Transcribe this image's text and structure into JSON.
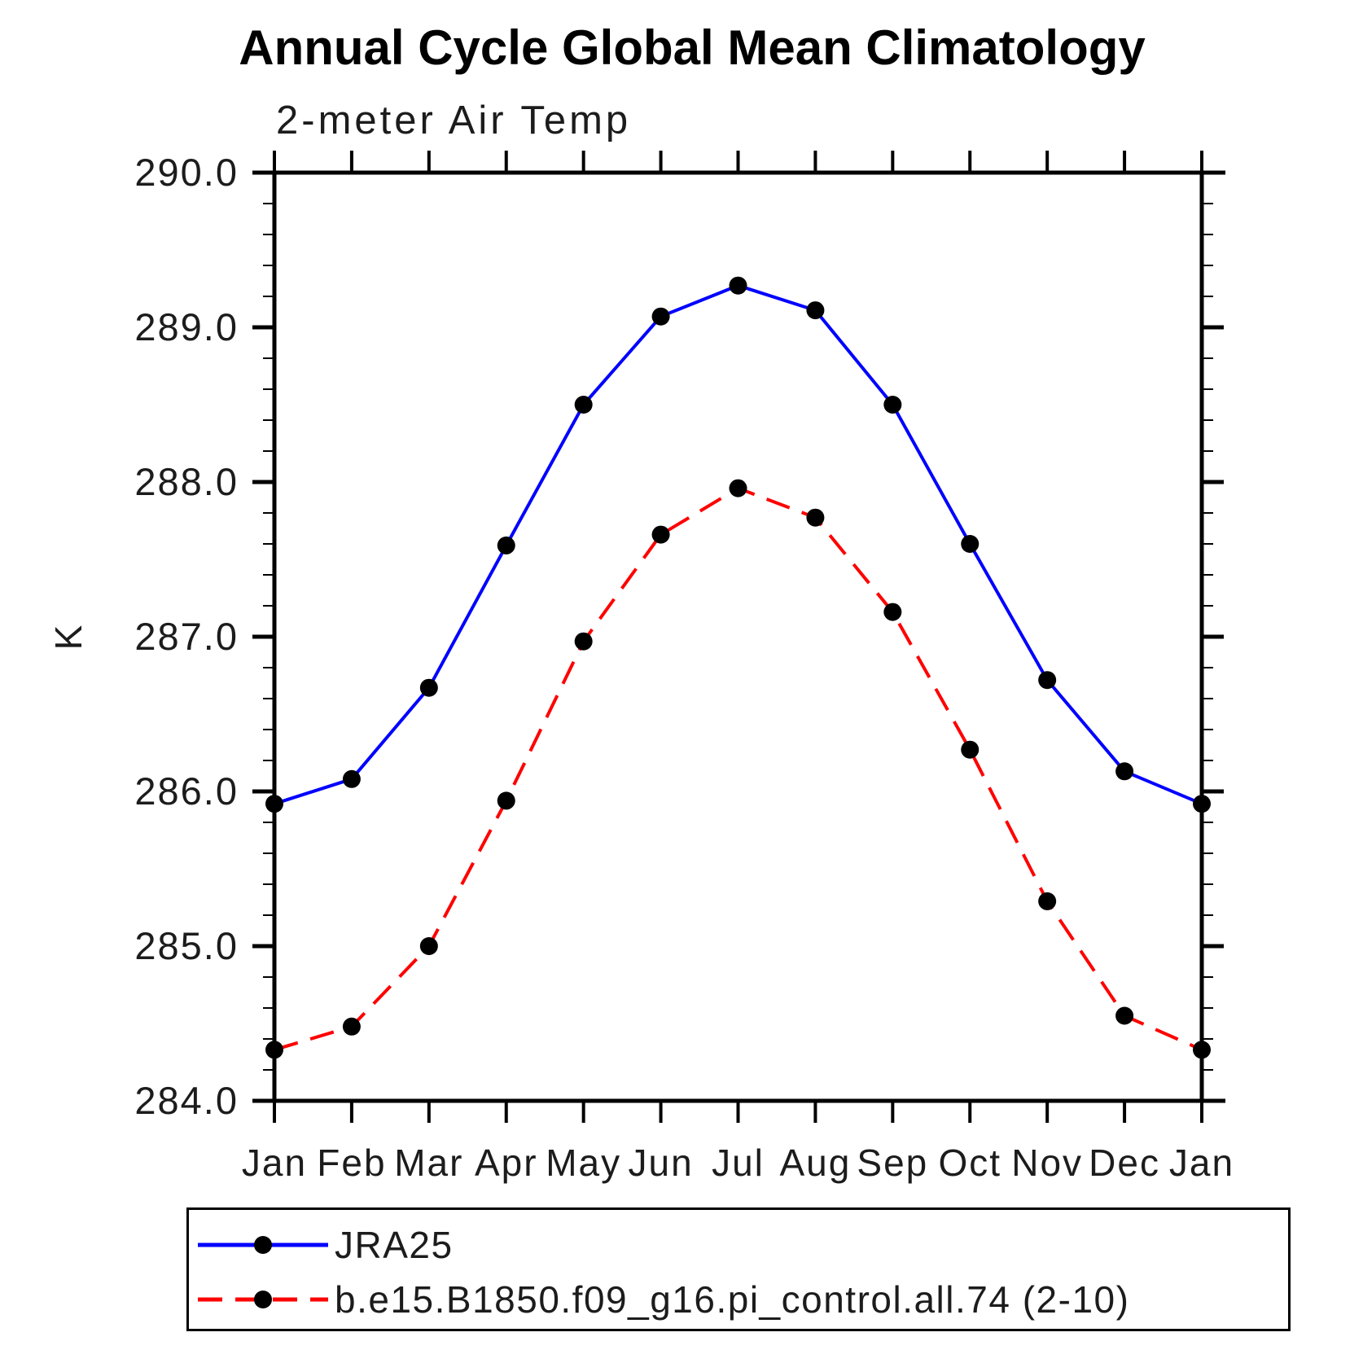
{
  "header": {
    "title": "Annual Cycle Global Mean Climatology",
    "subtitle": "2-meter Air Temp"
  },
  "chart_data": {
    "type": "line",
    "title": "Annual Cycle Global Mean Climatology",
    "subtitle": "2-meter Air Temp",
    "xlabel": "",
    "ylabel": "K",
    "categories": [
      "Jan",
      "Feb",
      "Mar",
      "Apr",
      "May",
      "Jun",
      "Jul",
      "Aug",
      "Sep",
      "Oct",
      "Nov",
      "Dec",
      "Jan"
    ],
    "series": [
      {
        "name": "JRA25",
        "color": "#0000ff",
        "line_style": "solid",
        "marker": "filled-circle",
        "marker_color": "#000000",
        "values": [
          285.92,
          286.08,
          286.67,
          287.59,
          288.5,
          289.07,
          289.27,
          289.11,
          288.5,
          287.6,
          286.72,
          286.13,
          285.92
        ]
      },
      {
        "name": "b.e15.B1850.f09_g16.pi_control.all.74 (2-10)",
        "color": "#ff0000",
        "line_style": "dashed",
        "marker": "filled-circle",
        "marker_color": "#000000",
        "values": [
          284.33,
          284.48,
          285.0,
          285.94,
          286.97,
          287.66,
          287.96,
          287.77,
          287.16,
          286.27,
          285.29,
          284.55,
          284.33
        ]
      }
    ],
    "ylim": [
      284.0,
      290.0
    ],
    "ytick_major_step": 1.0,
    "ytick_minor_step": 0.2,
    "ytick_labels": [
      "290.0",
      "289.0",
      "288.0",
      "287.0",
      "286.0",
      "285.0",
      "284.0"
    ],
    "grid": false,
    "legend_position": "below-left-box",
    "axis_color": "#000000",
    "text_color": "#1c1c1c"
  }
}
